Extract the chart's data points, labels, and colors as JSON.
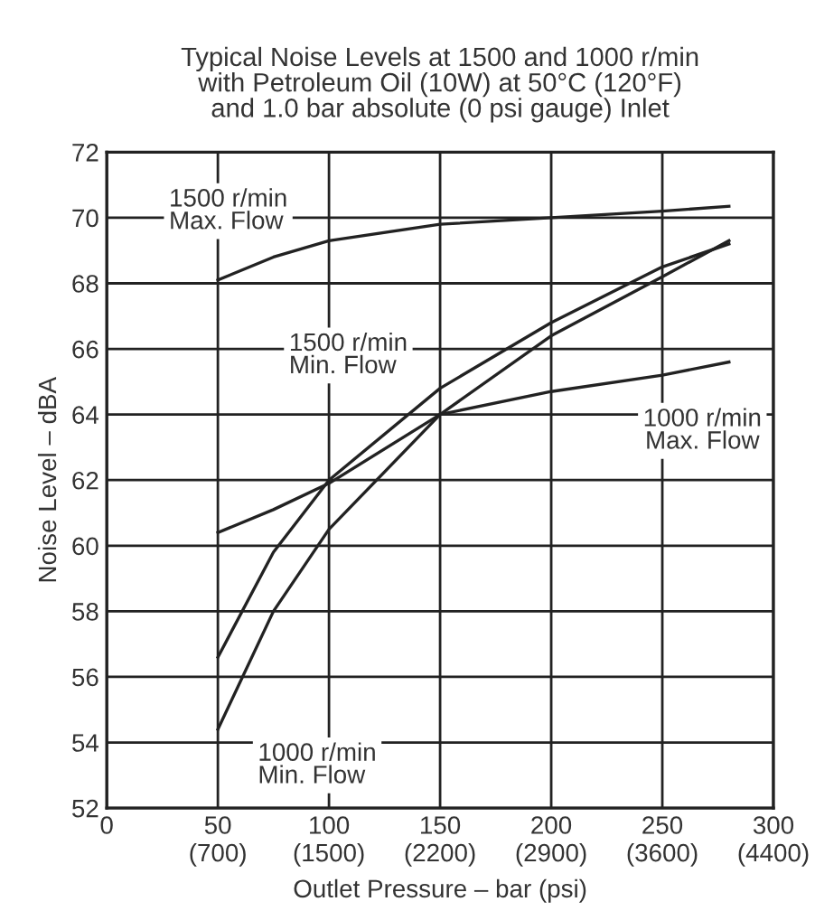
{
  "chart_data": {
    "type": "line",
    "title": "Typical Noise Levels at 1500 and 1000 r/min\nwith Petroleum Oil (10W) at 50°C (120°F)\nand 1.0 bar absolute (0 psi gauge) Inlet",
    "xlabel": "Outlet Pressure – bar (psi)",
    "ylabel": "Noise Level – dBA",
    "x": [
      50,
      75,
      100,
      150,
      200,
      250,
      280
    ],
    "series": [
      {
        "name": "1500 r/min\nMax. Flow",
        "color": "#222222",
        "values": [
          68.1,
          68.8,
          69.3,
          69.8,
          70.0,
          70.2,
          70.35
        ]
      },
      {
        "name": "1500 r/min\nMin. Flow",
        "color": "#222222",
        "values": [
          56.6,
          59.8,
          62.0,
          64.8,
          66.8,
          68.5,
          69.2
        ]
      },
      {
        "name": "1000 r/min\nMax. Flow",
        "color": "#222222",
        "values": [
          60.4,
          61.1,
          61.9,
          64.0,
          64.7,
          65.2,
          65.6
        ]
      },
      {
        "name": "1000 r/min\nMin. Flow",
        "color": "#222222",
        "values": [
          54.4,
          58.0,
          60.5,
          64.0,
          66.4,
          68.2,
          69.3
        ]
      }
    ],
    "xlim": [
      0,
      300
    ],
    "ylim": [
      52,
      72
    ],
    "xticks": [
      0,
      50,
      100,
      150,
      200,
      250,
      300
    ],
    "annotations": [
      "(700)",
      "(1500)",
      "(2200)",
      "(2900)",
      "(3600)",
      "(4400)"
    ],
    "yticks": [
      52,
      54,
      56,
      58,
      60,
      62,
      64,
      66,
      68,
      70,
      72
    ],
    "grid": true,
    "marker": "none",
    "line_style": "solid",
    "legend": false
  }
}
